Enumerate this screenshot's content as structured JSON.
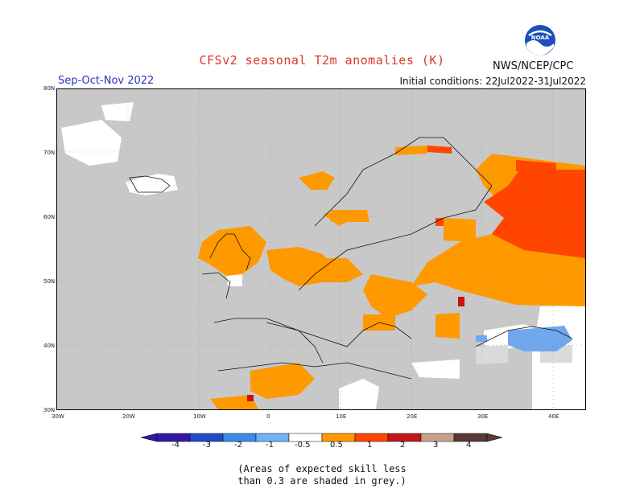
{
  "header": {
    "title": "CFSv2 seasonal T2m anomalies (K)",
    "agency": "NWS/NCEP/CPC",
    "season": "Sep-Oct-Nov 2022",
    "initial_conditions": "Initial conditions: 22Jul2022-31Jul2022"
  },
  "logo": {
    "icon": "noaa-logo-icon",
    "text": "NOAA"
  },
  "map": {
    "region": "Europe",
    "lat_labels": [
      "80N",
      "70N",
      "60N",
      "50N",
      "40N",
      "30N"
    ],
    "lon_labels": [
      "30W",
      "20W",
      "10W",
      "0",
      "10E",
      "20E",
      "30E",
      "40E"
    ],
    "background_color": "#c8c8c8",
    "anomaly_colors": {
      "0.5-1": "#ff9900",
      "1-2": "#ff4500",
      "2-3": "#cc1010",
      "below": "#6fa8ee",
      "no_skill": "#c8c8c8",
      "neutral": "#ffffff"
    }
  },
  "colorbar": {
    "labels": [
      "-4",
      "-3",
      "-2",
      "-1",
      "-0.5",
      "0.5",
      "1",
      "2",
      "3",
      "4"
    ],
    "colors": [
      "#3318a8",
      "#1e4cc8",
      "#3d8be8",
      "#6fb3f5",
      "#ffffff",
      "#ff9900",
      "#ff4500",
      "#c01818",
      "#c8a08c",
      "#5a3a36"
    ]
  },
  "note": {
    "line1": "(Areas of expected skill less",
    "line2": "than 0.3 are shaded in grey.)"
  }
}
